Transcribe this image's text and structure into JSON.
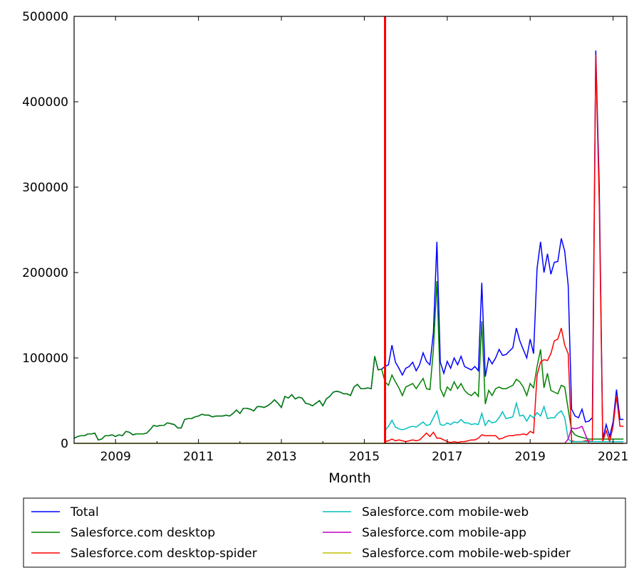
{
  "chart_data": {
    "type": "line",
    "title": "",
    "xlabel": "Month",
    "ylabel": "",
    "xlim": [
      "2008-01",
      "2021-05"
    ],
    "ylim": [
      0,
      500000
    ],
    "grid": false,
    "legend_position": "bottom",
    "x_frequency": "monthly",
    "xticks": [
      "2009",
      "2011",
      "2013",
      "2015",
      "2017",
      "2019",
      "2021"
    ],
    "yticks": [
      "0",
      "100000",
      "200000",
      "300000",
      "400000",
      "500000"
    ],
    "vline": {
      "x": "2015-07",
      "color": "#ff0000"
    },
    "series": [
      {
        "name": "Total",
        "color": "#0000ff",
        "start": "2008-01",
        "values": [
          6000,
          8000,
          9000,
          9000,
          11000,
          11000,
          12000,
          4000,
          5000,
          9000,
          9000,
          10000,
          8000,
          10000,
          9000,
          14000,
          13000,
          10000,
          11000,
          11000,
          11000,
          12000,
          16000,
          21000,
          20000,
          21000,
          21000,
          24000,
          23000,
          22000,
          18000,
          18000,
          28000,
          29000,
          29000,
          31000,
          32000,
          34000,
          33000,
          33000,
          31000,
          32000,
          32000,
          32000,
          33000,
          32000,
          35000,
          39000,
          35000,
          41000,
          41000,
          40000,
          38000,
          43000,
          43000,
          42000,
          44000,
          47000,
          51000,
          47000,
          42000,
          55000,
          53000,
          57000,
          52000,
          54000,
          53000,
          47000,
          46000,
          44000,
          47000,
          50000,
          44000,
          52000,
          55000,
          60000,
          61000,
          60000,
          58000,
          58000,
          56000,
          66000,
          69000,
          64000,
          64000,
          65000,
          64000,
          102000,
          86000,
          87000,
          90000,
          92000,
          115000,
          95000,
          88000,
          80000,
          88000,
          90000,
          95000,
          85000,
          92000,
          106000,
          96000,
          92000,
          130000,
          236000,
          95000,
          82000,
          96000,
          88000,
          100000,
          92000,
          102000,
          90000,
          88000,
          86000,
          90000,
          85000,
          188000,
          78000,
          100000,
          93000,
          100000,
          110000,
          103000,
          104000,
          108000,
          112000,
          135000,
          120000,
          110000,
          100000,
          122000,
          105000,
          205000,
          236000,
          200000,
          222000,
          198000,
          212000,
          213000,
          240000,
          225000,
          185000,
          40000,
          32000,
          30000,
          40000,
          25000,
          26000,
          30000,
          460000,
          300000,
          5000,
          22000,
          8000,
          25000,
          63000,
          28000,
          28000
        ]
      },
      {
        "name": "Salesforce.com desktop",
        "color": "#008000",
        "start": "2008-01",
        "values": [
          6000,
          8000,
          9000,
          9000,
          11000,
          11000,
          12000,
          4000,
          5000,
          9000,
          9000,
          10000,
          8000,
          10000,
          9000,
          14000,
          13000,
          10000,
          11000,
          11000,
          11000,
          12000,
          16000,
          21000,
          20000,
          21000,
          21000,
          24000,
          23000,
          22000,
          18000,
          18000,
          28000,
          29000,
          29000,
          31000,
          32000,
          34000,
          33000,
          33000,
          31000,
          32000,
          32000,
          32000,
          33000,
          32000,
          35000,
          39000,
          35000,
          41000,
          41000,
          40000,
          38000,
          43000,
          43000,
          42000,
          44000,
          47000,
          51000,
          47000,
          42000,
          55000,
          53000,
          57000,
          52000,
          54000,
          53000,
          47000,
          46000,
          44000,
          47000,
          50000,
          44000,
          52000,
          55000,
          60000,
          61000,
          60000,
          58000,
          58000,
          56000,
          66000,
          69000,
          64000,
          64000,
          65000,
          64000,
          102000,
          86000,
          87000,
          72000,
          68000,
          80000,
          72000,
          65000,
          56000,
          66000,
          68000,
          70000,
          64000,
          70000,
          76000,
          64000,
          63000,
          110000,
          190000,
          64000,
          55000,
          66000,
          62000,
          72000,
          64000,
          70000,
          62000,
          58000,
          56000,
          60000,
          55000,
          143000,
          46000,
          62000,
          56000,
          64000,
          66000,
          64000,
          64000,
          66000,
          68000,
          75000,
          72000,
          66000,
          56000,
          70000,
          65000,
          90000,
          110000,
          65000,
          82000,
          62000,
          60000,
          58000,
          68000,
          66000,
          40000,
          15000,
          10000,
          8000,
          7000,
          6000,
          5000,
          5000,
          5000,
          5000,
          5000,
          5000,
          5000,
          5000,
          5000,
          5000,
          5000
        ]
      },
      {
        "name": "Salesforce.com desktop-spider",
        "color": "#ff0000",
        "start": "2015-07",
        "values": [
          2000,
          3000,
          5000,
          3000,
          4000,
          3000,
          2000,
          3000,
          4000,
          3000,
          4000,
          8000,
          12000,
          8000,
          13000,
          6000,
          6000,
          4000,
          2000,
          1000,
          2000,
          1000,
          2000,
          2000,
          3000,
          4000,
          4000,
          6000,
          10000,
          9000,
          9000,
          9000,
          9000,
          5000,
          6000,
          8000,
          9000,
          9000,
          10000,
          10000,
          11000,
          10000,
          14000,
          12000,
          80000,
          95000,
          98000,
          97000,
          105000,
          120000,
          122000,
          135000,
          115000,
          105000,
          3000,
          2000,
          2000,
          2000,
          3000,
          3000,
          2000,
          455000,
          280000,
          2000,
          15000,
          2000,
          20000,
          55000,
          20000,
          20000
        ]
      },
      {
        "name": "Salesforce.com mobile-web",
        "color": "#00bfbf",
        "start": "2015-07",
        "values": [
          15000,
          20000,
          27000,
          19000,
          17000,
          16000,
          17000,
          19000,
          20000,
          19000,
          22000,
          25000,
          21000,
          22000,
          30000,
          38000,
          22000,
          21000,
          24000,
          22000,
          25000,
          24000,
          28000,
          24000,
          24000,
          22000,
          23000,
          22000,
          35000,
          21000,
          27000,
          24000,
          25000,
          30000,
          37000,
          29000,
          30000,
          31000,
          47000,
          32000,
          33000,
          26000,
          33000,
          30000,
          36000,
          32000,
          43000,
          29000,
          30000,
          30000,
          35000,
          38000,
          30000,
          5000,
          2000,
          2000,
          2000,
          2000,
          2000,
          2000,
          2000,
          2000,
          2000,
          2000,
          2000,
          2000,
          2000,
          2000,
          2000,
          2000
        ]
      },
      {
        "name": "Salesforce.com mobile-app",
        "color": "#bf00bf",
        "start": "2015-07",
        "values": [
          0,
          0,
          0,
          0,
          0,
          0,
          0,
          0,
          0,
          0,
          0,
          0,
          0,
          0,
          0,
          0,
          0,
          0,
          0,
          0,
          0,
          0,
          0,
          0,
          0,
          0,
          0,
          0,
          0,
          0,
          0,
          0,
          0,
          0,
          0,
          0,
          0,
          0,
          0,
          0,
          0,
          0,
          0,
          0,
          0,
          0,
          0,
          0,
          0,
          0,
          0,
          0,
          0,
          5000,
          18000,
          17000,
          18000,
          20000,
          10000,
          0,
          0,
          0,
          0,
          0,
          0,
          0,
          0,
          0,
          0,
          0
        ]
      },
      {
        "name": "Salesforce.com mobile-web-spider",
        "color": "#bfbf00",
        "start": "2008-01",
        "values": [
          0,
          0,
          0,
          0,
          0,
          0,
          0,
          0,
          0,
          0,
          0,
          0,
          0,
          0,
          0,
          0,
          0,
          0,
          0,
          0,
          0,
          0,
          0,
          0,
          0,
          0,
          0,
          0,
          0,
          0,
          0,
          0,
          0,
          0,
          0,
          0,
          0,
          0,
          0,
          0,
          0,
          0,
          0,
          0,
          0,
          0,
          0,
          0,
          0,
          0,
          0,
          0,
          0,
          0,
          0,
          0,
          0,
          0,
          0,
          0,
          0,
          0,
          0,
          0,
          0,
          0,
          0,
          0,
          0,
          0,
          0,
          0,
          0,
          0,
          0,
          0,
          0,
          0,
          0,
          0,
          0,
          0,
          0,
          0,
          0,
          0,
          0,
          0,
          0,
          0,
          0,
          0,
          0,
          0,
          0,
          0,
          0,
          0,
          0,
          0,
          0,
          0,
          0,
          0,
          0,
          0,
          0,
          0,
          0,
          0,
          0,
          0,
          0,
          0,
          0,
          0,
          0,
          0,
          0,
          0,
          0,
          0,
          0,
          0,
          0,
          0,
          0,
          0,
          0,
          0,
          0,
          0,
          0,
          0,
          0,
          0,
          0,
          0,
          0,
          0,
          0,
          0,
          0,
          0,
          0,
          0,
          0,
          0,
          0,
          0,
          0,
          0,
          0,
          0,
          0,
          0,
          0,
          0,
          0,
          0
        ]
      }
    ]
  }
}
